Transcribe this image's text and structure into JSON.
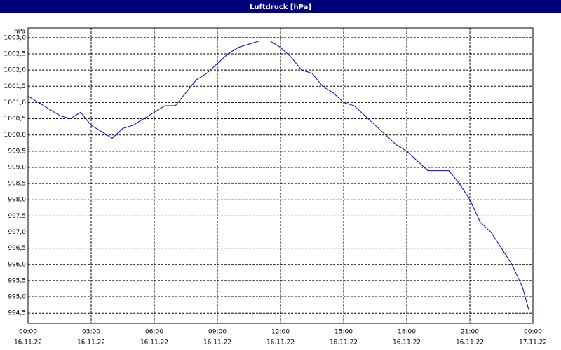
{
  "chart_data": {
    "type": "line",
    "title": "Luftdruck [hPa]",
    "y_unit": "hPa",
    "x": [
      0,
      0.5,
      1,
      1.5,
      2,
      2.5,
      3,
      3.5,
      4,
      4.5,
      5,
      5.5,
      6,
      6.5,
      7,
      7.5,
      8,
      8.5,
      9,
      9.5,
      10,
      10.5,
      11,
      11.5,
      12,
      12.5,
      13,
      13.5,
      14,
      14.5,
      15,
      15.5,
      16,
      16.5,
      17,
      17.5,
      18,
      18.5,
      19,
      19.5,
      20,
      20.5,
      21,
      21.5,
      22,
      22.5,
      23,
      23.5,
      23.8
    ],
    "series": [
      {
        "name": "Luftdruck",
        "color": "#0000cc",
        "values": [
          1001.2,
          1001.0,
          1000.8,
          1000.6,
          1000.5,
          1000.7,
          1000.3,
          1000.1,
          999.9,
          1000.2,
          1000.3,
          1000.5,
          1000.7,
          1000.9,
          1000.9,
          1001.3,
          1001.7,
          1001.9,
          1002.2,
          1002.5,
          1002.7,
          1002.8,
          1002.9,
          1002.9,
          1002.7,
          1002.4,
          1002.0,
          1001.9,
          1001.5,
          1001.3,
          1001.0,
          1000.9,
          1000.6,
          1000.3,
          1000.0,
          999.7,
          999.5,
          999.2,
          998.9,
          998.9,
          998.9,
          998.5,
          998.0,
          997.3,
          997.0,
          996.5,
          996.0,
          995.3,
          994.6
        ]
      }
    ],
    "xlim": [
      0,
      24
    ],
    "xticks": [
      {
        "value": 0,
        "label": "00:00",
        "date": "16.11.22"
      },
      {
        "value": 3,
        "label": "03:00",
        "date": "16.11.22"
      },
      {
        "value": 6,
        "label": "06:00",
        "date": "16.11.22"
      },
      {
        "value": 9,
        "label": "09:00",
        "date": "16.11.22"
      },
      {
        "value": 12,
        "label": "12:00",
        "date": "16.11.22"
      },
      {
        "value": 15,
        "label": "15:00",
        "date": "16.11.22"
      },
      {
        "value": 18,
        "label": "18:00",
        "date": "16.11.22"
      },
      {
        "value": 21,
        "label": "21:00",
        "date": "16.11.22"
      },
      {
        "value": 24,
        "label": "00:00",
        "date": "17.11.22"
      }
    ],
    "ylim": [
      994.18,
      1003.3
    ],
    "yticks": [
      {
        "value": 994.5,
        "label": "994,5"
      },
      {
        "value": 995,
        "label": "995,0"
      },
      {
        "value": 995.5,
        "label": "995,5"
      },
      {
        "value": 996,
        "label": "996,0"
      },
      {
        "value": 996.5,
        "label": "996,5"
      },
      {
        "value": 997,
        "label": "997,0"
      },
      {
        "value": 997.5,
        "label": "997,5"
      },
      {
        "value": 998,
        "label": "998,0"
      },
      {
        "value": 998.5,
        "label": "998,5"
      },
      {
        "value": 999,
        "label": "999,0"
      },
      {
        "value": 999.5,
        "label": "999,5"
      },
      {
        "value": 1000,
        "label": "1000,0"
      },
      {
        "value": 1000.5,
        "label": "1000,5"
      },
      {
        "value": 1001,
        "label": "1001,0"
      },
      {
        "value": 1001.5,
        "label": "1001,5"
      },
      {
        "value": 1002,
        "label": "1002,0"
      },
      {
        "value": 1002.5,
        "label": "1002,5"
      },
      {
        "value": 1003,
        "label": "1003,0"
      }
    ],
    "grid": true
  }
}
